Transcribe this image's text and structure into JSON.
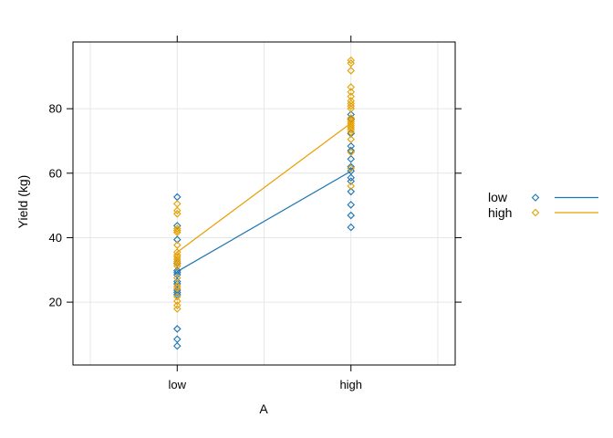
{
  "chart_data": {
    "type": "scatter",
    "title": "",
    "xlabel": "A",
    "ylabel": "Yield (kg)",
    "x_categories": [
      "low",
      "high"
    ],
    "xlim": [
      0.4,
      2.6
    ],
    "ylim": [
      0.5,
      100.7
    ],
    "y_ticks": [
      20,
      40,
      60,
      80
    ],
    "grid": {
      "h": [
        20,
        40,
        60,
        80
      ],
      "v": [
        0.5,
        1.0,
        1.5,
        2.0,
        2.5
      ]
    },
    "grid_color": "#e6e6e6",
    "axis_color": "#000000",
    "point_symbol": "diamond",
    "groups": [
      {
        "name": "low",
        "color": "#1c74b4",
        "values": {
          "low": [
            52.6,
            43.7,
            39.4,
            32.1,
            29.8,
            29.2,
            28.5,
            26.4,
            25.7,
            23.7,
            23.0,
            22.3,
            11.7,
            8.5,
            6.4
          ],
          "high": [
            78.2,
            76.8,
            72.3,
            68.4,
            67.0,
            64.4,
            62.0,
            60.7,
            58.6,
            57.5,
            54.3,
            50.2,
            46.9,
            43.2
          ]
        },
        "mean_line": {
          "low": 29.5,
          "high": 60.6
        }
      },
      {
        "name": "high",
        "color": "#e69f00",
        "values": {
          "low": [
            50.5,
            48.4,
            47.4,
            42.8,
            42.2,
            41.6,
            37.7,
            35.5,
            34.6,
            34.0,
            33.3,
            32.7,
            31.9,
            31.2,
            27.5,
            25.0,
            24.3,
            21.7,
            20.3,
            19.0,
            17.9
          ],
          "high": [
            95.0,
            94.1,
            91.8,
            86.7,
            85.2,
            83.8,
            82.4,
            81.6,
            80.8,
            80.0,
            77.1,
            76.5,
            75.9,
            75.3,
            74.7,
            74.1,
            73.5,
            72.7,
            70.5,
            66.5,
            61.5,
            56.0
          ]
        },
        "mean_line": {
          "low": 35.5,
          "high": 75.5
        }
      }
    ],
    "legend": {
      "labels": [
        "low",
        "high"
      ]
    }
  }
}
